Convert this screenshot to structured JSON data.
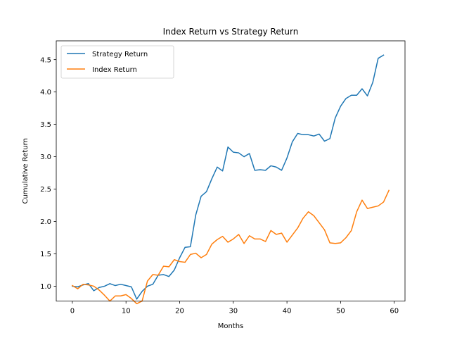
{
  "chart_data": {
    "type": "line",
    "title": "Index Return vs Strategy Return",
    "xlabel": "Months",
    "ylabel": "Cumulative Return",
    "xlim": [
      -3,
      62
    ],
    "ylim": [
      0.77,
      4.79
    ],
    "xticks": [
      0,
      10,
      20,
      30,
      40,
      50,
      60
    ],
    "yticks": [
      1.0,
      1.5,
      2.0,
      2.5,
      3.0,
      3.5,
      4.0,
      4.5
    ],
    "grid": false,
    "legend_position": "upper left",
    "series": [
      {
        "name": "Strategy Return",
        "color": "#1f77b4",
        "x": [
          0,
          1,
          2,
          3,
          4,
          5,
          6,
          7,
          8,
          9,
          10,
          11,
          12,
          13,
          14,
          15,
          16,
          17,
          18,
          19,
          20,
          21,
          22,
          23,
          24,
          25,
          26,
          27,
          28,
          29,
          30,
          31,
          32,
          33,
          34,
          35,
          36,
          37,
          38,
          39,
          40,
          41,
          42,
          43,
          44,
          45,
          46,
          47,
          48,
          49,
          50,
          51,
          52,
          53,
          54,
          55,
          56,
          57,
          58
        ],
        "values": [
          1.0,
          0.99,
          1.02,
          1.04,
          0.93,
          0.98,
          1.0,
          1.04,
          1.01,
          1.03,
          1.01,
          0.99,
          0.8,
          0.92,
          1.0,
          1.03,
          1.17,
          1.18,
          1.15,
          1.25,
          1.44,
          1.6,
          1.61,
          2.1,
          2.39,
          2.46,
          2.66,
          2.84,
          2.78,
          3.15,
          3.07,
          3.06,
          3.0,
          3.05,
          2.79,
          2.8,
          2.79,
          2.86,
          2.84,
          2.79,
          2.98,
          3.23,
          3.36,
          3.34,
          3.34,
          3.32,
          3.35,
          3.24,
          3.28,
          3.6,
          3.78,
          3.9,
          3.95,
          3.95,
          4.05,
          3.94,
          4.15,
          4.52,
          4.57
        ]
      },
      {
        "name": "Index Return",
        "color": "#ff7f0e",
        "x": [
          0,
          1,
          2,
          3,
          4,
          5,
          6,
          7,
          8,
          9,
          10,
          11,
          12,
          13,
          14,
          15,
          16,
          17,
          18,
          19,
          20,
          21,
          22,
          23,
          24,
          25,
          26,
          27,
          28,
          29,
          30,
          31,
          32,
          33,
          34,
          35,
          36,
          37,
          38,
          39,
          40,
          41,
          42,
          43,
          44,
          45,
          46,
          47,
          48,
          49,
          50,
          51,
          52,
          53,
          54,
          55,
          56,
          57,
          58,
          59
        ],
        "values": [
          1.01,
          0.96,
          1.03,
          1.02,
          1.0,
          0.94,
          0.86,
          0.77,
          0.85,
          0.85,
          0.87,
          0.81,
          0.73,
          0.77,
          1.08,
          1.18,
          1.17,
          1.31,
          1.3,
          1.41,
          1.38,
          1.37,
          1.49,
          1.51,
          1.44,
          1.49,
          1.65,
          1.72,
          1.77,
          1.68,
          1.73,
          1.8,
          1.66,
          1.78,
          1.73,
          1.73,
          1.69,
          1.86,
          1.8,
          1.82,
          1.68,
          1.79,
          1.9,
          2.05,
          2.15,
          2.09,
          1.98,
          1.87,
          1.67,
          1.66,
          1.67,
          1.75,
          1.86,
          2.15,
          2.33,
          2.2,
          2.22,
          2.24,
          2.3,
          2.48
        ]
      }
    ]
  }
}
